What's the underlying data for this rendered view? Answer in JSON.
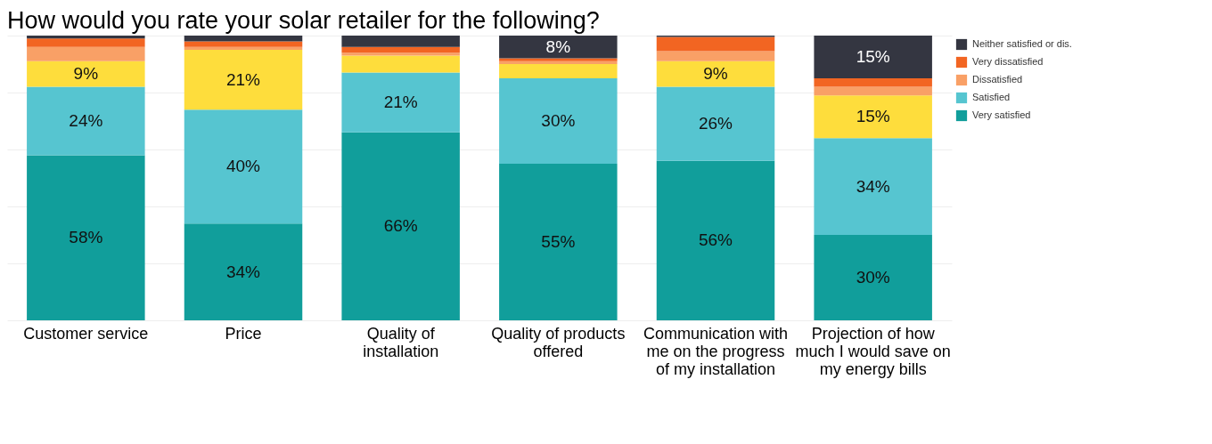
{
  "chart_data": {
    "type": "bar",
    "stacked": true,
    "title": "How would you rate your solar retailer for the following?",
    "categories": [
      "Customer service",
      "Price",
      "Quality of installation",
      "Quality of products offered",
      "Communication with me on the progress of my installation",
      "Projection of how much I would save on my energy bills"
    ],
    "series": [
      {
        "name": "Very satisfied",
        "color": "#119e9b",
        "values": [
          58,
          34,
          66,
          55,
          56,
          30
        ],
        "value_labels": [
          "58%",
          "34%",
          "66%",
          "55%",
          "56%",
          "30%"
        ]
      },
      {
        "name": "Satisfied",
        "color": "#56c5d0",
        "values": [
          24,
          40,
          21,
          30,
          26,
          34
        ],
        "value_labels": [
          "24%",
          "40%",
          "21%",
          "30%",
          "26%",
          "34%"
        ]
      },
      {
        "color": "#fedd3c",
        "values": [
          9,
          21,
          6,
          5,
          9,
          15
        ],
        "value_labels": [
          "9%",
          "21%",
          null,
          null,
          "9%",
          "15%"
        ]
      },
      {
        "name": "Dissatisfied",
        "color": "#f9a066",
        "values": [
          5,
          1,
          1,
          1,
          3.5,
          3
        ],
        "value_labels": [
          null,
          null,
          null,
          null,
          null,
          null
        ]
      },
      {
        "name": "Very dissatisfied",
        "color": "#f26522",
        "values": [
          3,
          2,
          2,
          1,
          5,
          3
        ],
        "value_labels": [
          null,
          null,
          null,
          null,
          null,
          null
        ]
      },
      {
        "name": "Neither satisfied or dis.",
        "color": "#343641",
        "values": [
          1,
          2,
          4,
          8,
          0.5,
          15
        ],
        "value_labels": [
          null,
          null,
          null,
          "8%",
          null,
          "15%"
        ]
      }
    ],
    "ylim": [
      0,
      100
    ],
    "yticks": [
      {
        "value": 0,
        "label": null
      },
      {
        "value": 20,
        "label": null
      },
      {
        "value": 40,
        "label": null
      },
      {
        "value": 60,
        "label": null
      },
      {
        "value": 80,
        "label": null
      },
      {
        "value": 100,
        "label": null
      }
    ],
    "tick_labels": "x",
    "grid": "y",
    "legend": "top right"
  }
}
